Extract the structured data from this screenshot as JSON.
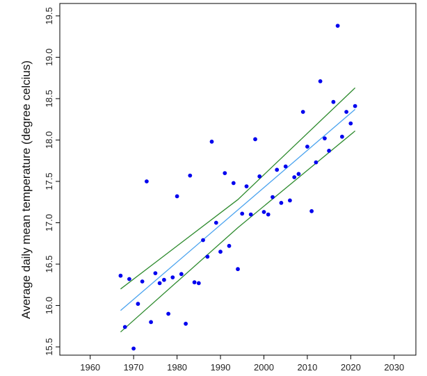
{
  "chart_data": {
    "type": "scatter",
    "title": "",
    "xlabel": "",
    "ylabel": "Average daily mean temperature (degree celcius)",
    "xlim": [
      1953,
      2035
    ],
    "ylim": [
      15.4,
      19.65
    ],
    "xticks": [
      "1960",
      "1970",
      "1980",
      "1990",
      "2000",
      "2010",
      "2020",
      "2030"
    ],
    "yticks": [
      "15.5",
      "16.0",
      "16.5",
      "17.0",
      "17.5",
      "18.0",
      "18.5",
      "19.0",
      "19.5"
    ],
    "grid": false,
    "colors": {
      "points": "#0000ee",
      "fit": "#4aa3ef",
      "band": "#2e8b2e",
      "frame": "#000000"
    },
    "points": [
      {
        "x": 1967,
        "y": 16.36
      },
      {
        "x": 1968,
        "y": 15.74
      },
      {
        "x": 1969,
        "y": 16.32
      },
      {
        "x": 1970,
        "y": 15.48
      },
      {
        "x": 1971,
        "y": 16.02
      },
      {
        "x": 1972,
        "y": 16.29
      },
      {
        "x": 1973,
        "y": 17.5
      },
      {
        "x": 1974,
        "y": 15.8
      },
      {
        "x": 1975,
        "y": 16.39
      },
      {
        "x": 1976,
        "y": 16.27
      },
      {
        "x": 1977,
        "y": 16.31
      },
      {
        "x": 1978,
        "y": 15.9
      },
      {
        "x": 1979,
        "y": 16.34
      },
      {
        "x": 1980,
        "y": 17.32
      },
      {
        "x": 1981,
        "y": 16.38
      },
      {
        "x": 1982,
        "y": 15.78
      },
      {
        "x": 1983,
        "y": 17.57
      },
      {
        "x": 1984,
        "y": 16.28
      },
      {
        "x": 1985,
        "y": 16.27
      },
      {
        "x": 1986,
        "y": 16.79
      },
      {
        "x": 1987,
        "y": 16.59
      },
      {
        "x": 1988,
        "y": 17.98
      },
      {
        "x": 1989,
        "y": 17.0
      },
      {
        "x": 1990,
        "y": 16.65
      },
      {
        "x": 1991,
        "y": 17.6
      },
      {
        "x": 1992,
        "y": 16.72
      },
      {
        "x": 1993,
        "y": 17.48
      },
      {
        "x": 1994,
        "y": 16.44
      },
      {
        "x": 1995,
        "y": 17.11
      },
      {
        "x": 1996,
        "y": 17.44
      },
      {
        "x": 1997,
        "y": 17.1
      },
      {
        "x": 1998,
        "y": 18.01
      },
      {
        "x": 1999,
        "y": 17.56
      },
      {
        "x": 2000,
        "y": 17.13
      },
      {
        "x": 2001,
        "y": 17.1
      },
      {
        "x": 2002,
        "y": 17.31
      },
      {
        "x": 2003,
        "y": 17.64
      },
      {
        "x": 2004,
        "y": 17.24
      },
      {
        "x": 2005,
        "y": 17.68
      },
      {
        "x": 2006,
        "y": 17.27
      },
      {
        "x": 2007,
        "y": 17.55
      },
      {
        "x": 2008,
        "y": 17.59
      },
      {
        "x": 2009,
        "y": 18.34
      },
      {
        "x": 2010,
        "y": 17.92
      },
      {
        "x": 2011,
        "y": 17.14
      },
      {
        "x": 2012,
        "y": 17.73
      },
      {
        "x": 2013,
        "y": 18.71
      },
      {
        "x": 2014,
        "y": 18.02
      },
      {
        "x": 2015,
        "y": 17.87
      },
      {
        "x": 2016,
        "y": 18.46
      },
      {
        "x": 2017,
        "y": 19.38
      },
      {
        "x": 2018,
        "y": 18.04
      },
      {
        "x": 2019,
        "y": 18.34
      },
      {
        "x": 2020,
        "y": 18.2
      },
      {
        "x": 2021,
        "y": 18.41
      }
    ],
    "fit_line": {
      "x": [
        1967,
        2021
      ],
      "y": [
        15.94,
        18.37
      ]
    },
    "confidence_band": {
      "upper": {
        "x": [
          1967,
          1994,
          2021
        ],
        "y": [
          16.2,
          17.28,
          18.63
        ]
      },
      "lower": {
        "x": [
          1967,
          1994,
          2021
        ],
        "y": [
          15.68,
          16.94,
          18.11
        ]
      }
    }
  }
}
